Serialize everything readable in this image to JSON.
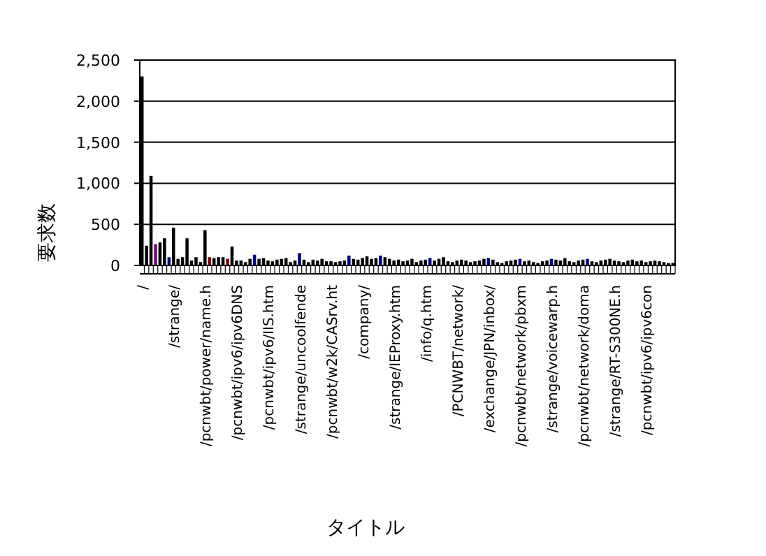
{
  "chart_data": {
    "type": "bar",
    "xlabel": "タイトル",
    "ylabel": "要求数",
    "categories": [
      "/",
      null,
      null,
      null,
      null,
      null,
      null,
      "/strange/",
      null,
      null,
      null,
      null,
      null,
      null,
      "/pcnwbt/power/name.h",
      null,
      null,
      null,
      null,
      null,
      null,
      "/pcnwbt/ipv6/ipv6DNS",
      null,
      null,
      null,
      null,
      null,
      null,
      "/pcnwbt/ipv6/IIS.htm",
      null,
      null,
      null,
      null,
      null,
      null,
      "/strange/uncoolfende",
      null,
      null,
      null,
      null,
      null,
      null,
      "/pcnwbt/w2k/CASrv.ht",
      null,
      null,
      null,
      null,
      null,
      null,
      "/company/",
      null,
      null,
      null,
      null,
      null,
      null,
      "/strange/IEProxy.htm",
      null,
      null,
      null,
      null,
      null,
      null,
      "/info/q.htm",
      null,
      null,
      null,
      null,
      null,
      null,
      "/PCNWBT/network/",
      null,
      null,
      null,
      null,
      null,
      null,
      "/exchange/JPN/inbox/",
      null,
      null,
      null,
      null,
      null,
      null,
      "/pcnwbt/network/pbxm",
      null,
      null,
      null,
      null,
      null,
      null,
      "/strange/voicewarp.h",
      null,
      null,
      null,
      null,
      null,
      null,
      "/pcnwbt/network/doma",
      null,
      null,
      null,
      null,
      null,
      null,
      "/strange/RT-S300NE.h",
      null,
      null,
      null,
      null,
      null,
      null,
      "/pcnwbt/ipv6/ipv6con",
      null,
      null,
      null,
      null,
      null,
      null
    ],
    "values": [
      2300,
      240,
      1090,
      260,
      280,
      330,
      100,
      460,
      80,
      100,
      330,
      60,
      100,
      40,
      430,
      100,
      90,
      100,
      100,
      80,
      230,
      60,
      60,
      40,
      80,
      130,
      80,
      90,
      60,
      50,
      70,
      80,
      90,
      40,
      60,
      150,
      70,
      40,
      70,
      60,
      80,
      50,
      50,
      40,
      50,
      60,
      120,
      80,
      70,
      90,
      110,
      80,
      90,
      120,
      100,
      80,
      60,
      70,
      50,
      60,
      80,
      40,
      60,
      70,
      90,
      60,
      80,
      100,
      50,
      40,
      60,
      70,
      60,
      40,
      50,
      60,
      80,
      90,
      70,
      40,
      30,
      50,
      60,
      70,
      80,
      50,
      60,
      40,
      30,
      50,
      60,
      80,
      70,
      60,
      90,
      50,
      40,
      60,
      70,
      80,
      50,
      40,
      60,
      70,
      80,
      60,
      50,
      40,
      60,
      70,
      50,
      60,
      40,
      50,
      60,
      50,
      40,
      30,
      30
    ],
    "colors": [
      "#000000",
      "#000000",
      "#000000",
      "#800080",
      "#000000",
      "#000000",
      "#000080",
      "#000000",
      "#000000",
      "#000000",
      "#000000",
      "#000000",
      "#000000",
      "#000000",
      "#000000",
      "#800000",
      "#000000",
      "#000000",
      "#000000",
      "#800000",
      "#000000",
      "#000000",
      "#000000",
      "#000000",
      "#000000",
      "#000080",
      "#000000",
      "#000000",
      "#000000",
      "#000000",
      "#000000",
      "#000000",
      "#000000",
      "#000000",
      "#000000",
      "#000080",
      "#000000",
      "#000000",
      "#000000",
      "#000000",
      "#000000",
      "#000000",
      "#000000",
      "#000000",
      "#000000",
      "#000000",
      "#000080",
      "#000000",
      "#000000",
      "#000000",
      "#000000",
      "#000000",
      "#000000",
      "#000080",
      "#000000",
      "#000000",
      "#000000",
      "#000000",
      "#000000",
      "#000000",
      "#000000",
      "#000000",
      "#000000",
      "#000000",
      "#000080",
      "#000000",
      "#000000",
      "#000000",
      "#000000",
      "#000000",
      "#000000",
      "#000000",
      "#000000",
      "#000000",
      "#000000",
      "#000000",
      "#000000",
      "#000080",
      "#000000",
      "#000000",
      "#000000",
      "#000000",
      "#000000",
      "#000000",
      "#000080",
      "#000000",
      "#000000",
      "#000000",
      "#000000",
      "#000000",
      "#000000",
      "#000080",
      "#000000",
      "#000000",
      "#000000",
      "#000000",
      "#000000",
      "#000000",
      "#000000",
      "#000080",
      "#000000",
      "#000000",
      "#000000",
      "#000000",
      "#000000",
      "#000000",
      "#000000",
      "#000000",
      "#000000",
      "#000000",
      "#000000",
      "#000000",
      "#000000",
      "#000000",
      "#000000",
      "#000000",
      "#000000",
      "#000000",
      "#000000"
    ],
    "ylim": [
      0,
      2500
    ],
    "yticks": [
      0,
      {
        "value": 500,
        "label": "500"
      },
      {
        "value": 1000,
        "label": "1,000"
      },
      {
        "value": 1500,
        "label": "1,500"
      },
      {
        "value": 2000,
        "label": "2,000"
      },
      {
        "value": 2500,
        "label": "2,500"
      }
    ],
    "grid": "y"
  }
}
